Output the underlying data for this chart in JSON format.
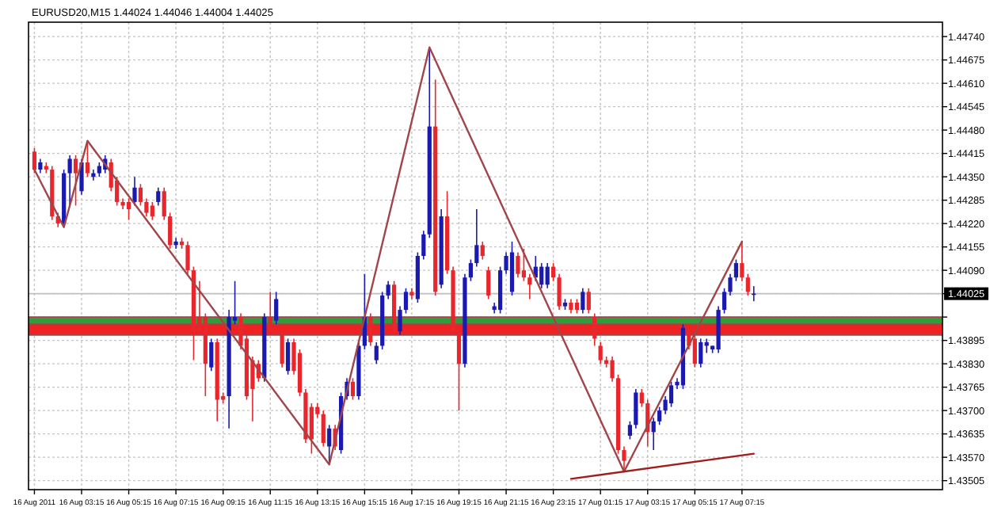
{
  "chart_data": {
    "type": "candlestick",
    "title": "EURUSD20,M15  1.44024 1.44046 1.44004 1.44025",
    "x": [
      "2011-08-16T01:15",
      "2011-08-16T01:30",
      "2011-08-16T01:45",
      "2011-08-16T02:00",
      "2011-08-16T02:15",
      "2011-08-16T02:30",
      "2011-08-16T02:45",
      "2011-08-16T03:00",
      "2011-08-16T03:15",
      "2011-08-16T03:30",
      "2011-08-16T03:45",
      "2011-08-16T04:00",
      "2011-08-16T04:15",
      "2011-08-16T04:30",
      "2011-08-16T04:45",
      "2011-08-16T05:00",
      "2011-08-16T05:15",
      "2011-08-16T05:30",
      "2011-08-16T05:45",
      "2011-08-16T06:00",
      "2011-08-16T06:15",
      "2011-08-16T06:30",
      "2011-08-16T06:45",
      "2011-08-16T07:00",
      "2011-08-16T07:15",
      "2011-08-16T07:30",
      "2011-08-16T07:45",
      "2011-08-16T08:00",
      "2011-08-16T08:15",
      "2011-08-16T08:30",
      "2011-08-16T08:45",
      "2011-08-16T09:00",
      "2011-08-16T09:15",
      "2011-08-16T09:30",
      "2011-08-16T09:45",
      "2011-08-16T10:00",
      "2011-08-16T10:15",
      "2011-08-16T10:30",
      "2011-08-16T10:45",
      "2011-08-16T11:00",
      "2011-08-16T11:15",
      "2011-08-16T11:30",
      "2011-08-16T11:45",
      "2011-08-16T12:00",
      "2011-08-16T12:15",
      "2011-08-16T12:30",
      "2011-08-16T12:45",
      "2011-08-16T13:00",
      "2011-08-16T13:15",
      "2011-08-16T13:30",
      "2011-08-16T13:45",
      "2011-08-16T14:00",
      "2011-08-16T14:15",
      "2011-08-16T14:30",
      "2011-08-16T14:45",
      "2011-08-16T15:00",
      "2011-08-16T15:15",
      "2011-08-16T15:30",
      "2011-08-16T15:45",
      "2011-08-16T16:00",
      "2011-08-16T16:15",
      "2011-08-16T16:30",
      "2011-08-16T16:45",
      "2011-08-16T17:00",
      "2011-08-16T17:15",
      "2011-08-16T17:30",
      "2011-08-16T17:45",
      "2011-08-16T18:00",
      "2011-08-16T18:15",
      "2011-08-16T18:30",
      "2011-08-16T18:45",
      "2011-08-16T19:00",
      "2011-08-16T19:15",
      "2011-08-16T19:30",
      "2011-08-16T19:45",
      "2011-08-16T20:00",
      "2011-08-16T20:15",
      "2011-08-16T20:30",
      "2011-08-16T20:45",
      "2011-08-16T21:00",
      "2011-08-16T21:15",
      "2011-08-16T21:30",
      "2011-08-16T21:45",
      "2011-08-16T22:00",
      "2011-08-16T22:15",
      "2011-08-16T22:30",
      "2011-08-16T22:45",
      "2011-08-16T23:00",
      "2011-08-16T23:15",
      "2011-08-16T23:30",
      "2011-08-16T23:45",
      "2011-08-17T00:00",
      "2011-08-17T00:15",
      "2011-08-17T00:30",
      "2011-08-17T00:45",
      "2011-08-17T01:00",
      "2011-08-17T01:15",
      "2011-08-17T01:30",
      "2011-08-17T01:45",
      "2011-08-17T02:00",
      "2011-08-17T02:15",
      "2011-08-17T02:30",
      "2011-08-17T02:45",
      "2011-08-17T03:00",
      "2011-08-17T03:15",
      "2011-08-17T03:30",
      "2011-08-17T03:45",
      "2011-08-17T04:00",
      "2011-08-17T04:15",
      "2011-08-17T04:30",
      "2011-08-17T04:45",
      "2011-08-17T05:00",
      "2011-08-17T05:15",
      "2011-08-17T05:30",
      "2011-08-17T05:45",
      "2011-08-17T06:00",
      "2011-08-17T06:15",
      "2011-08-17T06:30",
      "2011-08-17T06:45",
      "2011-08-17T07:00",
      "2011-08-17T07:15",
      "2011-08-17T07:30",
      "2011-08-17T07:45"
    ],
    "ohlc": [
      [
        1.4442,
        1.4443,
        1.4436,
        1.4437
      ],
      [
        1.4437,
        1.444,
        1.4436,
        1.4439
      ],
      [
        1.4438,
        1.4439,
        1.4436,
        1.4437
      ],
      [
        1.4437,
        1.4438,
        1.4423,
        1.4424
      ],
      [
        1.4424,
        1.4425,
        1.4421,
        1.4422
      ],
      [
        1.4422,
        1.4437,
        1.4421,
        1.4436
      ],
      [
        1.4436,
        1.4441,
        1.4427,
        1.444
      ],
      [
        1.444,
        1.4441,
        1.4427,
        1.4436
      ],
      [
        1.4431,
        1.444,
        1.443,
        1.4439
      ],
      [
        1.4439,
        1.4445,
        1.4435,
        1.4436
      ],
      [
        1.4435,
        1.4437,
        1.4434,
        1.4436
      ],
      [
        1.4436,
        1.4439,
        1.4435,
        1.4438
      ],
      [
        1.4437,
        1.4441,
        1.4436,
        1.444
      ],
      [
        1.4439,
        1.444,
        1.4431,
        1.4432
      ],
      [
        1.4434,
        1.4435,
        1.4427,
        1.4428
      ],
      [
        1.4428,
        1.4429,
        1.4426,
        1.4427
      ],
      [
        1.4428,
        1.4429,
        1.4423,
        1.4426
      ],
      [
        1.4428,
        1.4435,
        1.4427,
        1.4432
      ],
      [
        1.4432,
        1.4433,
        1.4427,
        1.4428
      ],
      [
        1.4428,
        1.4429,
        1.4424,
        1.4425
      ],
      [
        1.4427,
        1.4428,
        1.4423,
        1.4424
      ],
      [
        1.4428,
        1.4432,
        1.4427,
        1.4431
      ],
      [
        1.4431,
        1.4432,
        1.4423,
        1.4424
      ],
      [
        1.4424,
        1.4425,
        1.4415,
        1.4416
      ],
      [
        1.4416,
        1.4418,
        1.4415,
        1.4417
      ],
      [
        1.4417,
        1.4418,
        1.4415,
        1.4416
      ],
      [
        1.4416,
        1.4417,
        1.4408,
        1.4409
      ],
      [
        1.4409,
        1.441,
        1.4384,
        1.4392
      ],
      [
        1.4396,
        1.4406,
        1.4391,
        1.4392
      ],
      [
        1.4396,
        1.4397,
        1.4374,
        1.4383
      ],
      [
        1.4382,
        1.439,
        1.4381,
        1.4389
      ],
      [
        1.4389,
        1.439,
        1.4367,
        1.4373
      ],
      [
        1.4374,
        1.4375,
        1.4372,
        1.4373
      ],
      [
        1.4374,
        1.4398,
        1.4365,
        1.4396
      ],
      [
        1.4395,
        1.4406,
        1.4394,
        1.4396
      ],
      [
        1.4396,
        1.4397,
        1.4387,
        1.4388
      ],
      [
        1.439,
        1.4391,
        1.4373,
        1.4374
      ],
      [
        1.4384,
        1.4385,
        1.4367,
        1.4376
      ],
      [
        1.4383,
        1.4384,
        1.4378,
        1.4379
      ],
      [
        1.4379,
        1.4397,
        1.4378,
        1.4396
      ],
      [
        1.4396,
        1.4403,
        1.4392,
        1.4394
      ],
      [
        1.4395,
        1.4403,
        1.4394,
        1.4401
      ],
      [
        1.4391,
        1.4392,
        1.4382,
        1.4383
      ],
      [
        1.4381,
        1.439,
        1.438,
        1.4389
      ],
      [
        1.4389,
        1.439,
        1.438,
        1.4381
      ],
      [
        1.4386,
        1.4387,
        1.4374,
        1.4375
      ],
      [
        1.4375,
        1.4376,
        1.4361,
        1.4362
      ],
      [
        1.4371,
        1.4372,
        1.4358,
        1.4362
      ],
      [
        1.4371,
        1.4372,
        1.4368,
        1.4369
      ],
      [
        1.4369,
        1.437,
        1.436,
        1.4361
      ],
      [
        1.436,
        1.4366,
        1.4355,
        1.4365
      ],
      [
        1.4365,
        1.4366,
        1.4359,
        1.436
      ],
      [
        1.4359,
        1.4375,
        1.4358,
        1.4374
      ],
      [
        1.4374,
        1.4379,
        1.4373,
        1.4378
      ],
      [
        1.4378,
        1.4379,
        1.4373,
        1.4374
      ],
      [
        1.4374,
        1.4389,
        1.4373,
        1.4388
      ],
      [
        1.4388,
        1.4408,
        1.4387,
        1.4396
      ],
      [
        1.4396,
        1.4397,
        1.4388,
        1.4389
      ],
      [
        1.4384,
        1.4389,
        1.4383,
        1.4388
      ],
      [
        1.4388,
        1.4403,
        1.4387,
        1.4402
      ],
      [
        1.4402,
        1.4406,
        1.4401,
        1.4405
      ],
      [
        1.4405,
        1.4406,
        1.4391,
        1.4392
      ],
      [
        1.4392,
        1.4399,
        1.4391,
        1.4398
      ],
      [
        1.4398,
        1.4404,
        1.4397,
        1.4403
      ],
      [
        1.4403,
        1.4404,
        1.4401,
        1.4402
      ],
      [
        1.4401,
        1.4414,
        1.44,
        1.4413
      ],
      [
        1.4413,
        1.442,
        1.4412,
        1.4419
      ],
      [
        1.4419,
        1.4471,
        1.4418,
        1.4449
      ],
      [
        1.4449,
        1.4462,
        1.4402,
        1.4403
      ],
      [
        1.4405,
        1.4426,
        1.4404,
        1.4424
      ],
      [
        1.4424,
        1.4431,
        1.4408,
        1.4409
      ],
      [
        1.4409,
        1.441,
        1.4391,
        1.4392
      ],
      [
        1.4392,
        1.4393,
        1.437,
        1.4383
      ],
      [
        1.4383,
        1.4408,
        1.4382,
        1.4407
      ],
      [
        1.4407,
        1.4412,
        1.4406,
        1.4411
      ],
      [
        1.4411,
        1.4426,
        1.441,
        1.4416
      ],
      [
        1.4416,
        1.4417,
        1.4412,
        1.4413
      ],
      [
        1.4409,
        1.441,
        1.4401,
        1.4402
      ],
      [
        1.4398,
        1.44,
        1.4397,
        1.4399
      ],
      [
        1.4398,
        1.441,
        1.4397,
        1.4409
      ],
      [
        1.4409,
        1.4414,
        1.4408,
        1.4413
      ],
      [
        1.4403,
        1.4417,
        1.4402,
        1.4414
      ],
      [
        1.4413,
        1.4414,
        1.4407,
        1.4408
      ],
      [
        1.4409,
        1.4415,
        1.4406,
        1.4407
      ],
      [
        1.4407,
        1.4408,
        1.4401,
        1.4405
      ],
      [
        1.4407,
        1.4413,
        1.4406,
        1.441
      ],
      [
        1.4405,
        1.4411,
        1.4404,
        1.441
      ],
      [
        1.4405,
        1.4411,
        1.4404,
        1.441
      ],
      [
        1.441,
        1.4411,
        1.4406,
        1.4407
      ],
      [
        1.4407,
        1.4408,
        1.4398,
        1.4399
      ],
      [
        1.4399,
        1.4401,
        1.4398,
        1.44
      ],
      [
        1.44,
        1.4401,
        1.4397,
        1.4398
      ],
      [
        1.44,
        1.4401,
        1.4397,
        1.4398
      ],
      [
        1.4398,
        1.4404,
        1.4397,
        1.4403
      ],
      [
        1.4403,
        1.4404,
        1.4397,
        1.4398
      ],
      [
        1.4396,
        1.4397,
        1.4388,
        1.439
      ],
      [
        1.4388,
        1.4389,
        1.4383,
        1.4384
      ],
      [
        1.4384,
        1.4385,
        1.4382,
        1.4383
      ],
      [
        1.4384,
        1.4385,
        1.4378,
        1.4379
      ],
      [
        1.4379,
        1.438,
        1.4358,
        1.4359
      ],
      [
        1.4359,
        1.436,
        1.4353,
        1.4356
      ],
      [
        1.4363,
        1.4367,
        1.4362,
        1.4366
      ],
      [
        1.4366,
        1.4376,
        1.4365,
        1.4375
      ],
      [
        1.4375,
        1.4376,
        1.4371,
        1.4372
      ],
      [
        1.4372,
        1.4373,
        1.436,
        1.4364
      ],
      [
        1.4364,
        1.4368,
        1.4359,
        1.4367
      ],
      [
        1.4367,
        1.4371,
        1.4366,
        1.437
      ],
      [
        1.437,
        1.4374,
        1.4369,
        1.4373
      ],
      [
        1.4372,
        1.4378,
        1.4371,
        1.4377
      ],
      [
        1.4377,
        1.4379,
        1.4376,
        1.4378
      ],
      [
        1.4377,
        1.4394,
        1.4376,
        1.4393
      ],
      [
        1.4392,
        1.4393,
        1.4387,
        1.4388
      ],
      [
        1.439,
        1.4391,
        1.4382,
        1.4383
      ],
      [
        1.4383,
        1.439,
        1.4382,
        1.4389
      ],
      [
        1.4388,
        1.439,
        1.4386,
        1.4389
      ],
      [
        1.4387,
        1.4388,
        1.4386,
        1.4388
      ],
      [
        1.4387,
        1.4399,
        1.4386,
        1.4398
      ],
      [
        1.4398,
        1.4404,
        1.4397,
        1.4403
      ],
      [
        1.4403,
        1.4408,
        1.4402,
        1.4407
      ],
      [
        1.4407,
        1.4412,
        1.4406,
        1.4411
      ],
      [
        1.4411,
        1.4417,
        1.4406,
        1.4407
      ],
      [
        1.4407,
        1.4408,
        1.4402,
        1.4403
      ],
      [
        1.44024,
        1.44046,
        1.44004,
        1.44025
      ]
    ],
    "colors": [
      "#e8262c",
      "#1a1ab0",
      "#e8262c",
      "#e8262c",
      "#e8262c",
      "#1a1ab0",
      "#1a1ab0",
      "#e8262c",
      "#1a1ab0",
      "#e8262c",
      "#1a1ab0",
      "#1a1ab0",
      "#1a1ab0",
      "#e8262c",
      "#e8262c",
      "#e8262c",
      "#e8262c",
      "#1a1ab0",
      "#e8262c",
      "#e8262c",
      "#e8262c",
      "#1a1ab0",
      "#e8262c",
      "#e8262c",
      "#1a1ab0",
      "#e8262c",
      "#e8262c",
      "#e8262c",
      "#e8262c",
      "#e8262c",
      "#1a1ab0",
      "#e8262c",
      "#e8262c",
      "#1a1ab0",
      "#1a1ab0",
      "#e8262c",
      "#e8262c",
      "#e8262c",
      "#e8262c",
      "#1a1ab0",
      "#e8262c",
      "#1a1ab0",
      "#e8262c",
      "#1a1ab0",
      "#e8262c",
      "#e8262c",
      "#e8262c",
      "#e8262c",
      "#e8262c",
      "#e8262c",
      "#1a1ab0",
      "#e8262c",
      "#1a1ab0",
      "#1a1ab0",
      "#e8262c",
      "#1a1ab0",
      "#1a1ab0",
      "#e8262c",
      "#1a1ab0",
      "#1a1ab0",
      "#1a1ab0",
      "#e8262c",
      "#1a1ab0",
      "#1a1ab0",
      "#e8262c",
      "#1a1ab0",
      "#1a1ab0",
      "#1a1ab0",
      "#e8262c",
      "#1a1ab0",
      "#e8262c",
      "#e8262c",
      "#e8262c",
      "#1a1ab0",
      "#1a1ab0",
      "#1a1ab0",
      "#e8262c",
      "#e8262c",
      "#1a1ab0",
      "#1a1ab0",
      "#1a1ab0",
      "#1a1ab0",
      "#e8262c",
      "#e8262c",
      "#e8262c",
      "#1a1ab0",
      "#1a1ab0",
      "#1a1ab0",
      "#e8262c",
      "#e8262c",
      "#1a1ab0",
      "#e8262c",
      "#e8262c",
      "#1a1ab0",
      "#e8262c",
      "#e8262c",
      "#e8262c",
      "#e8262c",
      "#e8262c",
      "#e8262c",
      "#e8262c",
      "#1a1ab0",
      "#1a1ab0",
      "#e8262c",
      "#e8262c",
      "#1a1ab0",
      "#1a1ab0",
      "#1a1ab0",
      "#1a1ab0",
      "#1a1ab0",
      "#1a1ab0",
      "#e8262c",
      "#e8262c",
      "#1a1ab0",
      "#1a1ab0",
      "#1a1ab0",
      "#1a1ab0",
      "#1a1ab0",
      "#1a1ab0",
      "#1a1ab0",
      "#e8262c",
      "#e8262c",
      "#1a1ab0"
    ],
    "series": [
      {
        "type": "line",
        "color": "#a0464a",
        "x": [
          "2011-08-16T01:15",
          "2011-08-16T02:30",
          "2011-08-16T03:30",
          "2011-08-16T13:45",
          "2011-08-16T18:00",
          "2011-08-17T02:15",
          "2011-08-17T07:15"
        ],
        "values": [
          1.4437,
          1.4421,
          1.4445,
          1.4355,
          1.4471,
          1.4353,
          1.4417
        ]
      },
      {
        "type": "line",
        "color": "#a01e1e",
        "x": [
          "2011-08-17T00:00",
          "2011-08-17T07:45"
        ],
        "values": [
          1.4351,
          1.4358
        ]
      }
    ],
    "xlim": [
      "2011-08-16T01:00",
      "2011-08-17T15:45"
    ],
    "xticks": [
      {
        "value": "2011-08-16T01:15",
        "label": "16 Aug 2011"
      },
      {
        "value": "2011-08-16T03:15",
        "label": "16 Aug 03:15"
      },
      {
        "value": "2011-08-16T05:15",
        "label": "16 Aug 05:15"
      },
      {
        "value": "2011-08-16T07:15",
        "label": "16 Aug 07:15"
      },
      {
        "value": "2011-08-16T09:15",
        "label": "16 Aug 09:15"
      },
      {
        "value": "2011-08-16T11:15",
        "label": "16 Aug 11:15"
      },
      {
        "value": "2011-08-16T13:15",
        "label": "16 Aug 13:15"
      },
      {
        "value": "2011-08-16T15:15",
        "label": "16 Aug 15:15"
      },
      {
        "value": "2011-08-16T17:15",
        "label": "16 Aug 17:15"
      },
      {
        "value": "2011-08-16T19:15",
        "label": "16 Aug 19:15"
      },
      {
        "value": "2011-08-16T21:15",
        "label": "16 Aug 21:15"
      },
      {
        "value": "2011-08-16T23:15",
        "label": "16 Aug 23:15"
      },
      {
        "value": "2011-08-17T01:15",
        "label": "17 Aug 01:15"
      },
      {
        "value": "2011-08-17T03:15",
        "label": "17 Aug 03:15"
      },
      {
        "value": "2011-08-17T05:15",
        "label": "17 Aug 05:15"
      },
      {
        "value": "2011-08-17T07:15",
        "label": "17 Aug 07:15"
      }
    ],
    "ylim": [
      1.4348,
      1.4478
    ],
    "yticks": [
      {
        "value": 1.4474,
        "label": "1.44740"
      },
      1.44675,
      {
        "value": 1.4461,
        "label": "1.44610"
      },
      1.44545,
      {
        "value": 1.4448,
        "label": "1.44480"
      },
      1.44415,
      {
        "value": 1.4435,
        "label": "1.44350"
      },
      1.44285,
      {
        "value": 1.4422,
        "label": "1.44220"
      },
      1.44155,
      {
        "value": 1.4409,
        "label": "1.44090"
      },
      {
        "value": 1.44025,
        "label": null
      },
      {
        "value": 1.4396,
        "label": null
      },
      1.43895,
      {
        "value": 1.4383,
        "label": "1.43830"
      },
      1.43765,
      {
        "value": 1.437,
        "label": "1.43700"
      },
      1.43635,
      {
        "value": 1.4357,
        "label": "1.43570"
      },
      1.43505
    ],
    "grid": true,
    "bands": [
      {
        "axis": "y",
        "from": 1.4394,
        "to": 1.4396,
        "color": "#2e9e3a"
      },
      {
        "axis": "y",
        "from": 1.4391,
        "to": 1.4394,
        "color": "#ee2222"
      }
    ],
    "ref_lines": [
      {
        "axis": "y",
        "value": 1.4396,
        "color": "#a0464a"
      },
      {
        "axis": "y",
        "value": 1.4394,
        "color": "#a0464a"
      },
      {
        "axis": "y",
        "value": 1.4391,
        "color": "#a0464a"
      },
      {
        "axis": "y",
        "value": 1.44025,
        "label": "1.44025",
        "color": "#c0c0c0"
      }
    ]
  }
}
